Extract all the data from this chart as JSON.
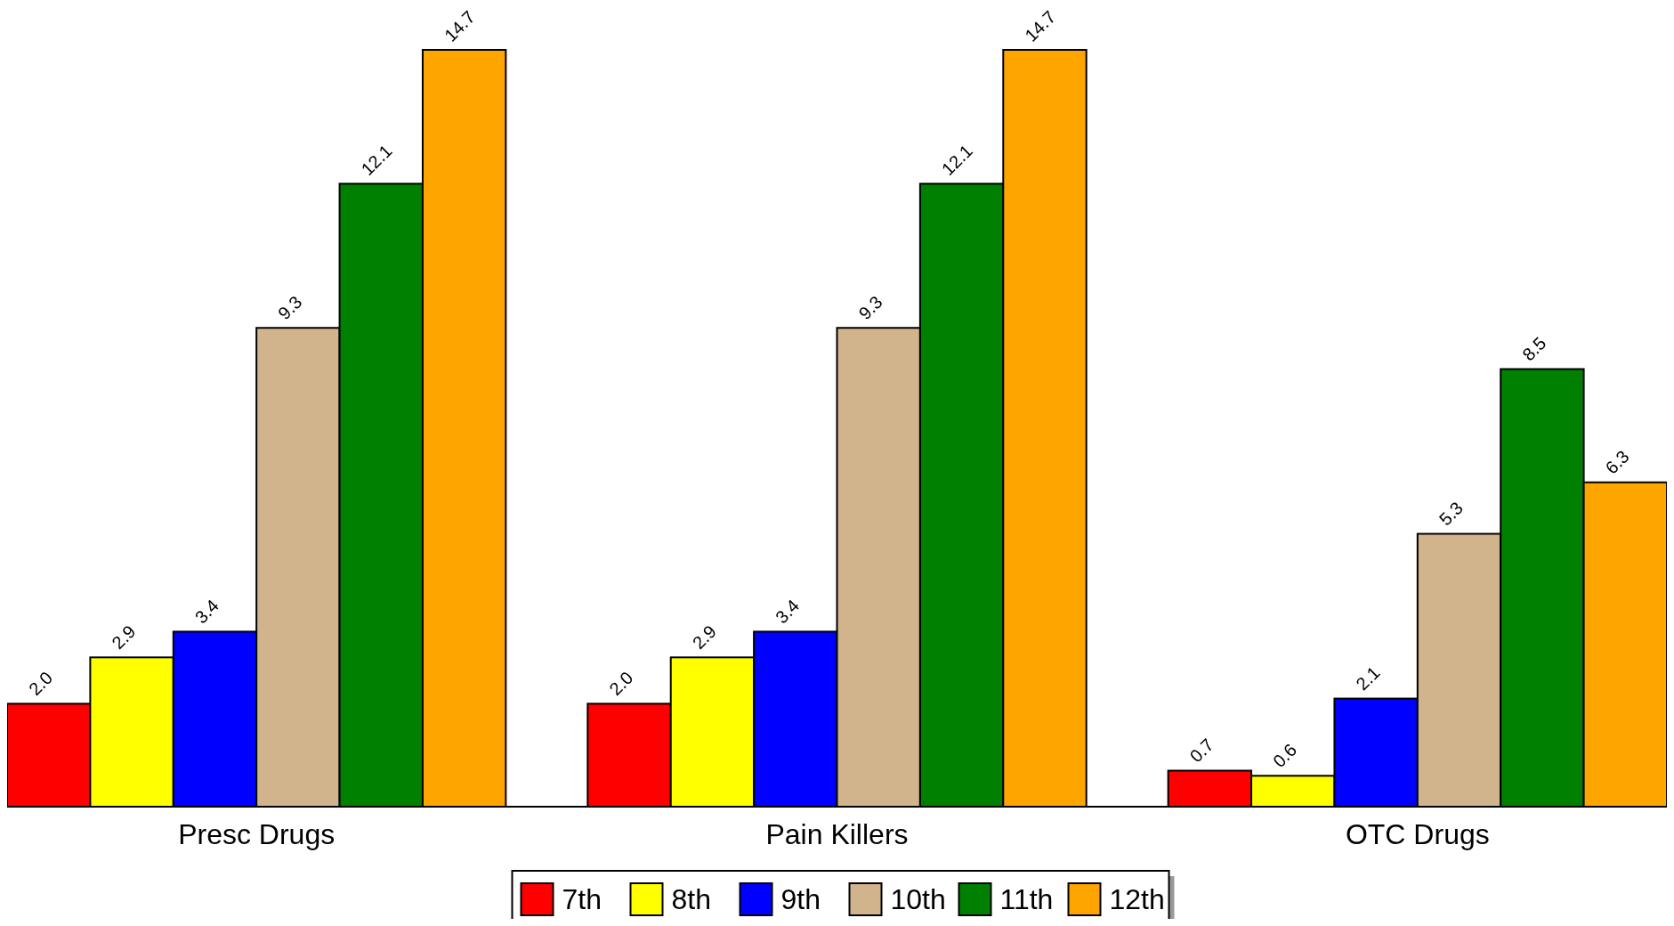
{
  "chart_data": {
    "type": "bar",
    "categories": [
      "Presc Drugs",
      "Pain Killers",
      "OTC Drugs"
    ],
    "series": [
      {
        "name": "7th",
        "color": "#ff0000",
        "values": [
          2.0,
          2.0,
          0.7
        ],
        "value_labels": [
          "2.0",
          "2.0",
          "0.7"
        ]
      },
      {
        "name": "8th",
        "color": "#ffff00",
        "values": [
          2.9,
          2.9,
          0.6
        ],
        "value_labels": [
          "2.9",
          "2.9",
          "0.6"
        ]
      },
      {
        "name": "9th",
        "color": "#0000ff",
        "values": [
          3.4,
          3.4,
          2.1
        ],
        "value_labels": [
          "3.4",
          "3.4",
          "2.1"
        ]
      },
      {
        "name": "10th",
        "color": "#d2b48c",
        "values": [
          9.3,
          9.3,
          5.3
        ],
        "value_labels": [
          "9.3",
          "9.3",
          "5.3"
        ]
      },
      {
        "name": "11th",
        "color": "#008000",
        "values": [
          12.1,
          12.1,
          8.5
        ],
        "value_labels": [
          "12.1",
          "12.1",
          "8.5"
        ]
      },
      {
        "name": "12th",
        "color": "#ffa500",
        "values": [
          14.7,
          14.7,
          6.3
        ],
        "value_labels": [
          "14.7",
          "14.7",
          "6.3"
        ]
      }
    ],
    "legend": "bottom"
  }
}
